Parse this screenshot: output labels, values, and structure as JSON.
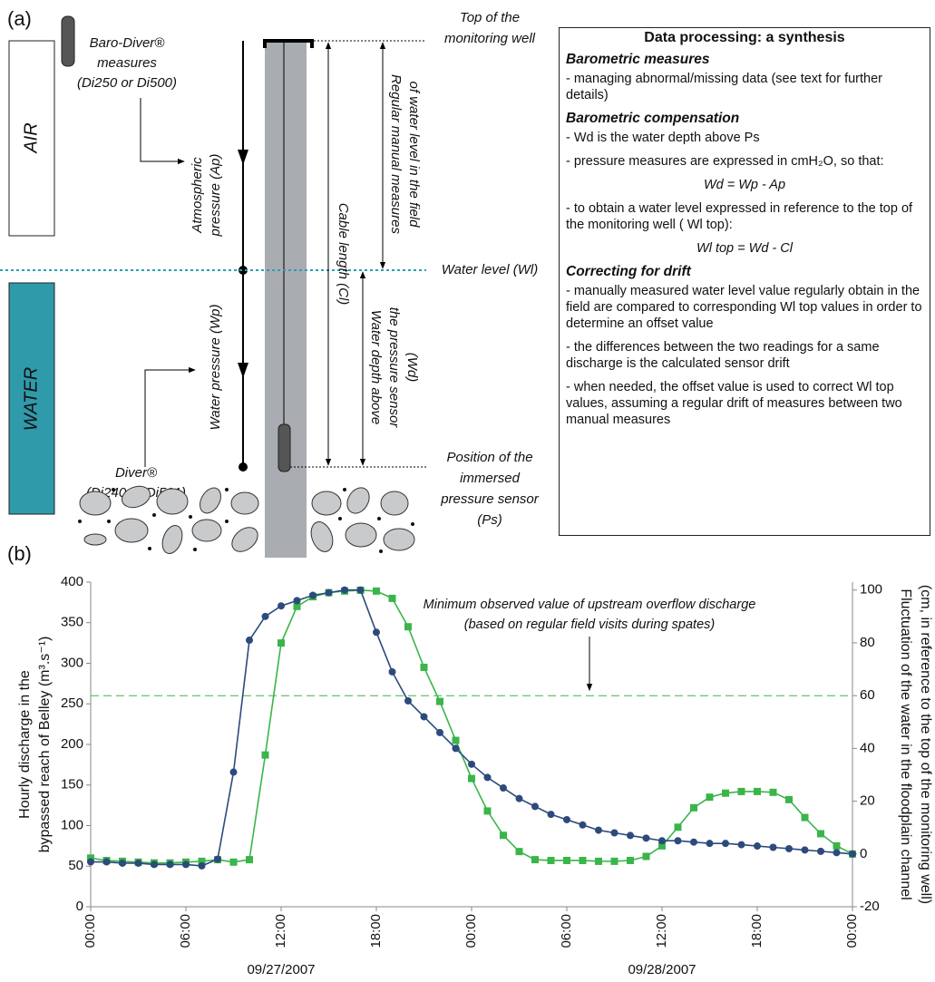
{
  "panel_a": {
    "label": "(a)",
    "air": "AIR",
    "water": "WATER",
    "baro_diver": [
      "Baro-Diver®",
      "measures",
      "(Di250 or Di500)"
    ],
    "atmospheric": [
      "Atmospheric",
      "pressure (Ap)"
    ],
    "water_pressure": "Water pressure (Wp)",
    "diver": [
      "Diver®",
      "(Di240 or Di501)"
    ],
    "cable": "Cable length (Cl)",
    "manual": [
      "Regular manual measures",
      "of water level in the field"
    ],
    "depth": [
      "Water depth above",
      "the pressure sensor",
      "(Wd)"
    ],
    "top": [
      "Top of the",
      "monitoring well"
    ],
    "water_level": "Water level (Wl)",
    "sensor": [
      "Position of the",
      "immersed",
      "pressure sensor",
      "(Ps)"
    ]
  },
  "synthesis": {
    "title": "Data processing: a synthesis",
    "sections": [
      {
        "heading": "Barometric measures",
        "items": [
          "- managing abnormal/missing data (see text for further details)"
        ]
      },
      {
        "heading": "Barometric compensation",
        "items": [
          "- Wd is the water depth above Ps",
          "- pressure measures are expressed in cmH₂O, so that:",
          "Wd = Wp - Ap",
          "- to obtain a water level expressed in reference to the top of the monitoring well ( Wl top):",
          "Wl top = Wd - Cl"
        ]
      },
      {
        "heading": "Correcting for drift",
        "items": [
          "- manually measured water level value regularly obtain in the field are compared to corresponding Wl top values in order to determine an offset value",
          "- the differences between the two readings for a same discharge is the calculated sensor drift",
          "- when needed, the offset value is used to correct Wl top values, assuming a regular drift of measures between two manual measures"
        ]
      }
    ]
  },
  "chart_data": {
    "type": "line",
    "panel_label": "(b)",
    "y_label": [
      "Hourly discharge in the",
      "bypassed reach of Belley (m³.s⁻¹)"
    ],
    "y2_label": [
      "Fluctuation of the water in the floodplain channel",
      "(cm, in reference to the top of the monitoring well)"
    ],
    "x": [
      0,
      1,
      2,
      3,
      4,
      5,
      6,
      7,
      8,
      9,
      10,
      11,
      12,
      13,
      14,
      15,
      16,
      17,
      18,
      19,
      20,
      21,
      22,
      23,
      24,
      25,
      26,
      27,
      28,
      29,
      30,
      31,
      32,
      33,
      34,
      35,
      36,
      37,
      38,
      39,
      40,
      41,
      42,
      43,
      44,
      45,
      46,
      47,
      48
    ],
    "xlim": [
      0,
      48
    ],
    "xticks": [
      {
        "value": 0,
        "label": "00:00"
      },
      {
        "value": 6,
        "label": "06:00"
      },
      {
        "value": 12,
        "label": "12:00"
      },
      {
        "value": 18,
        "label": "18:00"
      },
      {
        "value": 24,
        "label": "00:00"
      },
      {
        "value": 30,
        "label": "06:00"
      },
      {
        "value": 36,
        "label": "12:00"
      },
      {
        "value": 42,
        "label": "18:00"
      },
      {
        "value": 48,
        "label": "00:00"
      }
    ],
    "x_date_labels": [
      {
        "value": 12,
        "label": "09/27/2007"
      },
      {
        "value": 36,
        "label": "09/28/2007"
      }
    ],
    "ylim": [
      0,
      400
    ],
    "yticks": [
      0,
      50,
      100,
      150,
      200,
      250,
      300,
      350,
      400
    ],
    "y2lim": [
      -20,
      103
    ],
    "y2ticks": [
      -20,
      0,
      20,
      40,
      60,
      80,
      100
    ],
    "reference_line": {
      "value": 260,
      "color": "#3ab54a"
    },
    "annotation": [
      "Minimum observed value of upstream overflow discharge",
      "(based on regular field visits during spates)"
    ],
    "series": [
      {
        "color": "#3ab54a",
        "marker": "square",
        "axis": "y",
        "values": [
          60,
          57,
          56,
          55,
          54,
          54,
          55,
          56,
          58,
          55,
          58,
          187,
          325,
          370,
          382,
          387,
          389,
          390,
          389,
          380,
          345,
          295,
          253,
          205,
          158,
          118,
          88,
          68,
          58,
          57,
          57,
          57,
          56,
          56,
          57,
          62,
          75,
          98,
          122,
          135,
          140,
          142,
          142,
          141,
          132,
          110,
          90,
          75,
          65
        ]
      },
      {
        "color": "#2c4a7c",
        "marker": "circle",
        "axis": "y2",
        "values": [
          -3,
          -3,
          -3.5,
          -3.5,
          -4,
          -4,
          -4,
          -4.5,
          -2,
          31,
          81,
          90,
          94,
          96,
          98,
          99,
          100,
          100,
          84,
          69,
          58,
          52,
          46,
          40,
          34,
          29,
          25,
          21,
          18,
          15,
          13,
          11,
          9,
          8,
          7,
          6,
          5,
          5,
          4.5,
          4,
          4,
          3.5,
          3,
          2.5,
          2,
          1.5,
          1,
          0.5,
          0
        ]
      }
    ]
  }
}
